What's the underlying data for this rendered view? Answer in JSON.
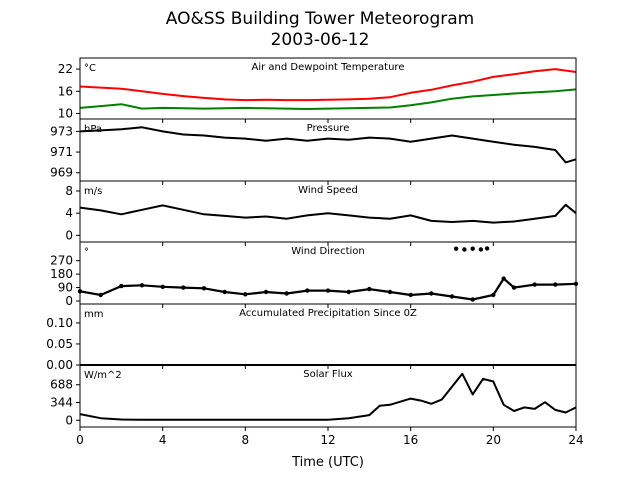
{
  "figure": {
    "title_line1": "AO&SS Building Tower Meteorogram",
    "title_line2": "2003-06-12",
    "xlabel": "Time (UTC)"
  },
  "chart_data": [
    {
      "id": "temp",
      "type": "line",
      "title": "Air and Dewpoint Temperature",
      "unit": "°C",
      "xlim": [
        0,
        24
      ],
      "ylim": [
        8.5,
        25
      ],
      "yticks": [
        "10",
        "16",
        "22"
      ],
      "ytick_values": [
        10,
        16,
        22
      ],
      "x": [
        0,
        1,
        2,
        3,
        4,
        5,
        6,
        7,
        8,
        9,
        10,
        11,
        12,
        13,
        14,
        15,
        16,
        17,
        18,
        19,
        20,
        21,
        22,
        23,
        24
      ],
      "series": [
        {
          "color": "#ff0000",
          "values": [
            17.3,
            17.0,
            16.7,
            16.0,
            15.3,
            14.7,
            14.2,
            13.8,
            13.6,
            13.7,
            13.6,
            13.6,
            13.7,
            13.8,
            14.0,
            14.4,
            15.6,
            16.4,
            17.6,
            18.6,
            19.9,
            20.6,
            21.4,
            22.0,
            21.2
          ]
        },
        {
          "color": "#008000",
          "values": [
            11.5,
            12.0,
            12.5,
            11.3,
            11.5,
            11.4,
            11.3,
            11.4,
            11.5,
            11.4,
            11.3,
            11.2,
            11.3,
            11.4,
            11.5,
            11.6,
            12.2,
            13.0,
            14.0,
            14.6,
            15.0,
            15.4,
            15.7,
            16.0,
            16.5
          ]
        }
      ]
    },
    {
      "id": "pressure",
      "type": "line",
      "title": "Pressure",
      "unit": "hPa",
      "xlim": [
        0,
        24
      ],
      "ylim": [
        968.2,
        974.2
      ],
      "yticks": [
        "969",
        "971",
        "973"
      ],
      "ytick_values": [
        969,
        971,
        973
      ],
      "x": [
        0,
        1,
        2,
        3,
        4,
        5,
        6,
        7,
        8,
        9,
        10,
        11,
        12,
        13,
        14,
        15,
        16,
        17,
        18,
        19,
        20,
        21,
        22,
        23,
        23.5,
        24
      ],
      "series": [
        {
          "color": "#000000",
          "values": [
            973.0,
            973.1,
            973.2,
            973.4,
            973.0,
            972.7,
            972.6,
            972.4,
            972.3,
            972.1,
            972.3,
            972.1,
            972.3,
            972.2,
            972.4,
            972.3,
            972.0,
            972.3,
            972.6,
            972.3,
            972.0,
            971.7,
            971.5,
            971.2,
            970.0,
            970.3
          ]
        }
      ]
    },
    {
      "id": "wind_speed",
      "type": "line",
      "title": "Wind Speed",
      "unit": "m/s",
      "xlim": [
        0,
        24
      ],
      "ylim": [
        -1.2,
        9.8
      ],
      "yticks": [
        "0",
        "4",
        "8"
      ],
      "ytick_values": [
        0,
        4,
        8
      ],
      "x": [
        0,
        1,
        2,
        3,
        4,
        5,
        6,
        7,
        8,
        9,
        10,
        11,
        12,
        13,
        14,
        15,
        16,
        17,
        18,
        19,
        20,
        21,
        22,
        23,
        23.5,
        24
      ],
      "series": [
        {
          "color": "#000000",
          "values": [
            5.0,
            4.5,
            3.8,
            4.6,
            5.4,
            4.6,
            3.8,
            3.5,
            3.2,
            3.4,
            3.0,
            3.6,
            4.0,
            3.6,
            3.2,
            3.0,
            3.6,
            2.6,
            2.4,
            2.6,
            2.3,
            2.5,
            3.0,
            3.5,
            5.5,
            4.0
          ]
        }
      ]
    },
    {
      "id": "wind_direction",
      "type": "scatter",
      "title": "Wind Direction",
      "unit": "°",
      "xlim": [
        0,
        24
      ],
      "ylim": [
        -20,
        395
      ],
      "yticks": [
        "0",
        "90",
        "180",
        "270"
      ],
      "ytick_values": [
        0,
        90,
        180,
        270
      ],
      "x": [
        0,
        1,
        2,
        3,
        4,
        5,
        6,
        7,
        8,
        9,
        10,
        11,
        12,
        13,
        14,
        15,
        16,
        17,
        18,
        19,
        20,
        20.5,
        21,
        22,
        23,
        24
      ],
      "series": [
        {
          "color": "#000000",
          "values": [
            65,
            40,
            100,
            105,
            95,
            90,
            85,
            60,
            45,
            60,
            50,
            70,
            70,
            60,
            80,
            60,
            40,
            50,
            30,
            10,
            40,
            150,
            90,
            110,
            110,
            115
          ]
        },
        {
          "color": "#000000",
          "x": [
            18.2,
            18.6,
            19.0,
            19.4,
            19.7
          ],
          "values": [
            350,
            345,
            350,
            345,
            352
          ]
        }
      ]
    },
    {
      "id": "precip",
      "type": "line",
      "title": "Accumulated Precipitation Since 0Z",
      "unit": "mm",
      "xlim": [
        0,
        24
      ],
      "ylim": [
        0,
        0.145
      ],
      "yticks": [
        "0.00",
        "0.05",
        "0.10"
      ],
      "ytick_values": [
        0,
        0.05,
        0.1
      ],
      "x": [
        0,
        24
      ],
      "series": [
        {
          "color": "#000000",
          "values": [
            0,
            0
          ]
        }
      ]
    },
    {
      "id": "solar",
      "type": "line",
      "title": "Solar Flux",
      "unit": "W/m^2",
      "xlim": [
        0,
        24
      ],
      "ylim": [
        -130,
        1070
      ],
      "yticks": [
        "0",
        "344",
        "688"
      ],
      "ytick_values": [
        0,
        344,
        688
      ],
      "xticks": [
        "0",
        "4",
        "8",
        "12",
        "16",
        "20",
        "24"
      ],
      "xtick_values": [
        0,
        4,
        8,
        12,
        16,
        20,
        24
      ],
      "x": [
        0,
        1,
        2,
        3,
        4,
        5,
        6,
        7,
        8,
        9,
        10,
        11,
        12,
        13,
        14,
        14.5,
        15,
        16,
        16.5,
        17,
        17.5,
        18,
        18.5,
        19,
        19.5,
        20,
        20.5,
        21,
        21.5,
        22,
        22.5,
        23,
        23.5,
        24
      ],
      "series": [
        {
          "color": "#000000",
          "values": [
            120,
            40,
            15,
            10,
            10,
            10,
            10,
            10,
            10,
            10,
            10,
            10,
            10,
            40,
            100,
            280,
            300,
            420,
            380,
            320,
            400,
            650,
            900,
            500,
            800,
            750,
            300,
            180,
            250,
            220,
            350,
            200,
            150,
            250
          ]
        }
      ]
    }
  ]
}
